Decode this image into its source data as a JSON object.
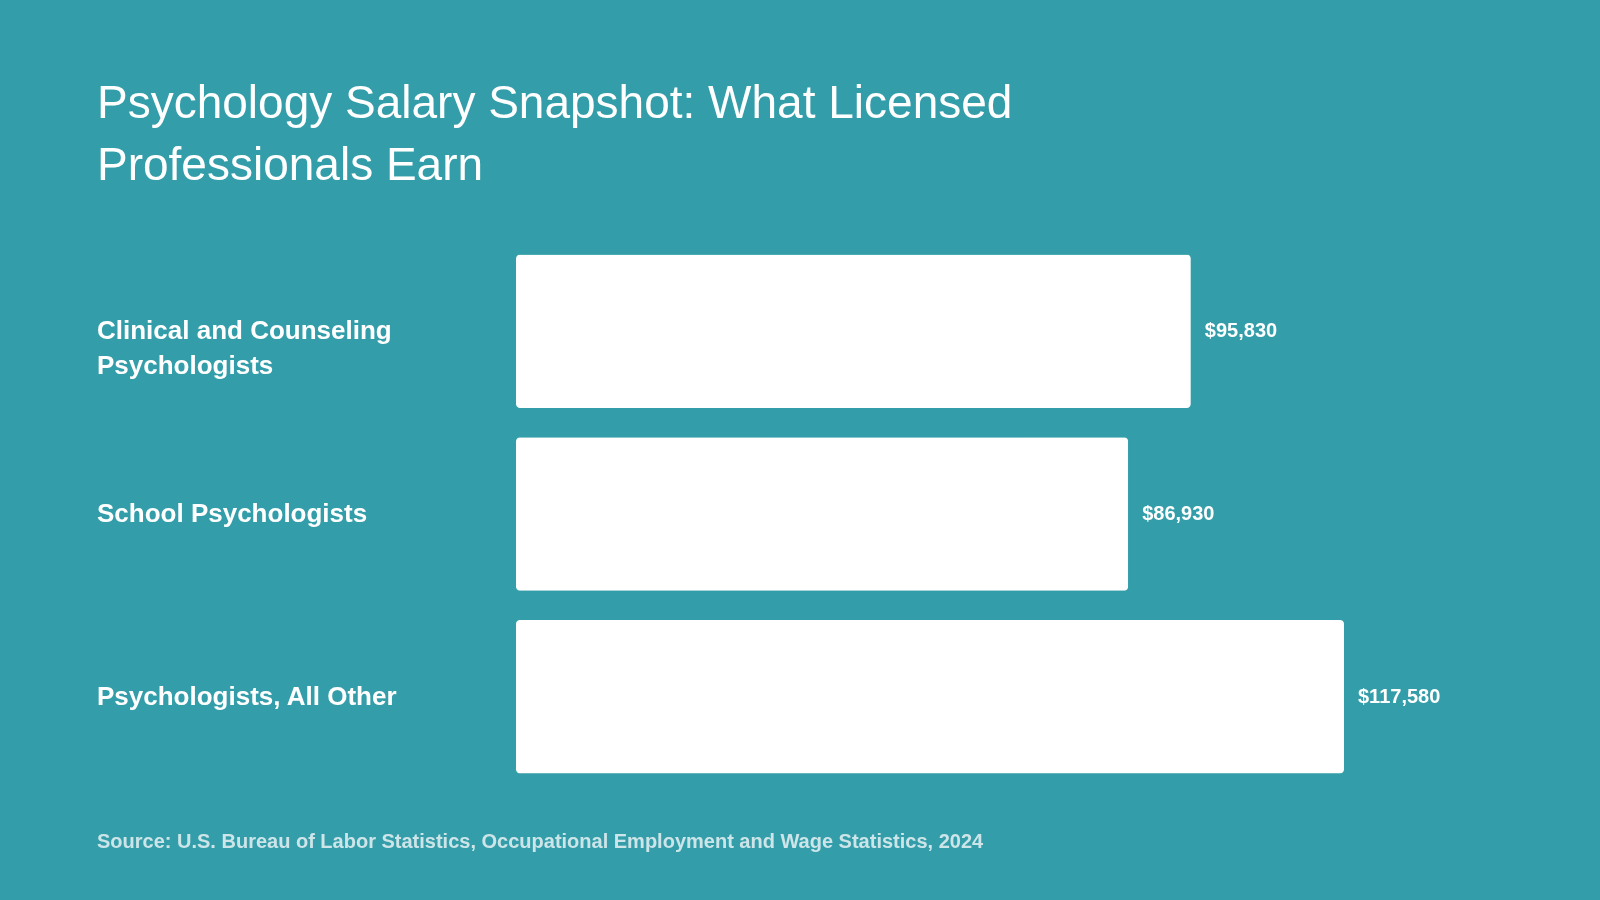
{
  "chart_data": {
    "type": "bar",
    "orientation": "horizontal",
    "title": "Psychology Salary Snapshot: What Licensed Professionals Earn",
    "categories": [
      "Clinical and Counseling Psychologists",
      "School Psychologists",
      "Psychologists, All Other"
    ],
    "values": [
      95830,
      86930,
      117580
    ],
    "value_labels": [
      "$95,830",
      "$86,930",
      "$117,580"
    ],
    "color": "#ffffff",
    "grid": false,
    "annotations": [
      "Source: U.S. Bureau of Labor Statistics, Occupational Employment and Wage Statistics, 2024"
    ]
  }
}
